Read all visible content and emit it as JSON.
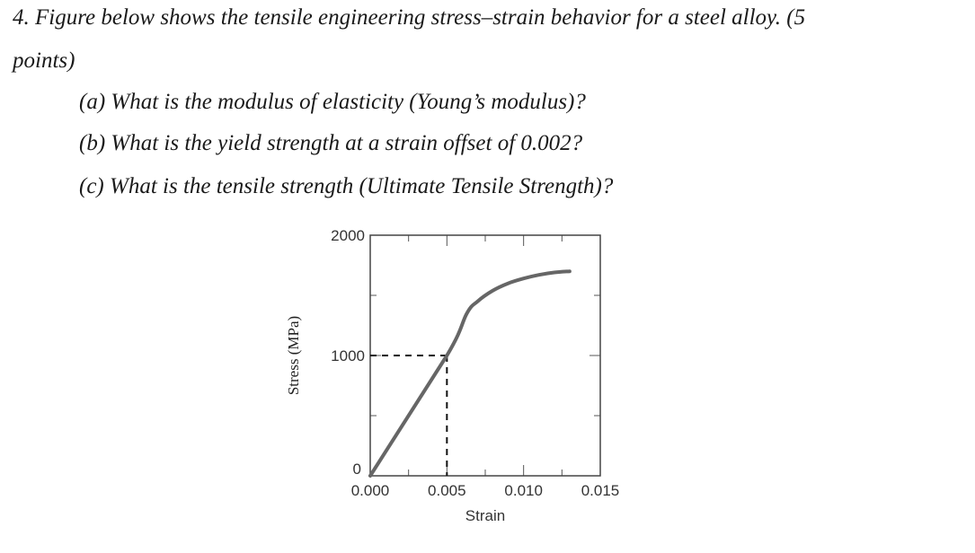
{
  "question": {
    "line1": "4. Figure below shows the tensile engineering stress–strain behavior for a steel alloy. (5",
    "line2": "points)",
    "a": "(a) What is the modulus of elasticity (Young’s modulus)?",
    "b": "(b) What is the yield strength at a strain offset of 0.002?",
    "c": "(c) What is the tensile strength (Ultimate Tensile Strength)?"
  },
  "chart_data": {
    "type": "line",
    "xlabel": "Strain",
    "ylabel": "Stress (MPa)",
    "xlim": [
      0,
      0.015
    ],
    "ylim": [
      0,
      2000
    ],
    "x_ticks": [
      0.0,
      0.005,
      0.01,
      0.015
    ],
    "x_tick_labels": [
      "0.000",
      "0.005",
      "0.010",
      "0.015"
    ],
    "y_ticks": [
      0,
      1000,
      2000
    ],
    "y_tick_labels": [
      "0",
      "1000",
      "2000"
    ],
    "series": [
      {
        "x": [
          0.0,
          0.005,
          0.0063,
          0.007,
          0.008,
          0.009,
          0.01,
          0.011,
          0.012,
          0.013
        ],
        "y": [
          0,
          1000,
          1350,
          1450,
          1540,
          1600,
          1640,
          1670,
          1690,
          1700
        ],
        "color": "#666666"
      }
    ],
    "reference_lines": [
      {
        "style": "dashed",
        "from": [
          0.0,
          1000
        ],
        "to": [
          0.005,
          1000
        ]
      },
      {
        "style": "dashed",
        "from": [
          0.005,
          1000
        ],
        "to": [
          0.005,
          0
        ]
      }
    ],
    "grid": false,
    "frame_ticks": true
  }
}
